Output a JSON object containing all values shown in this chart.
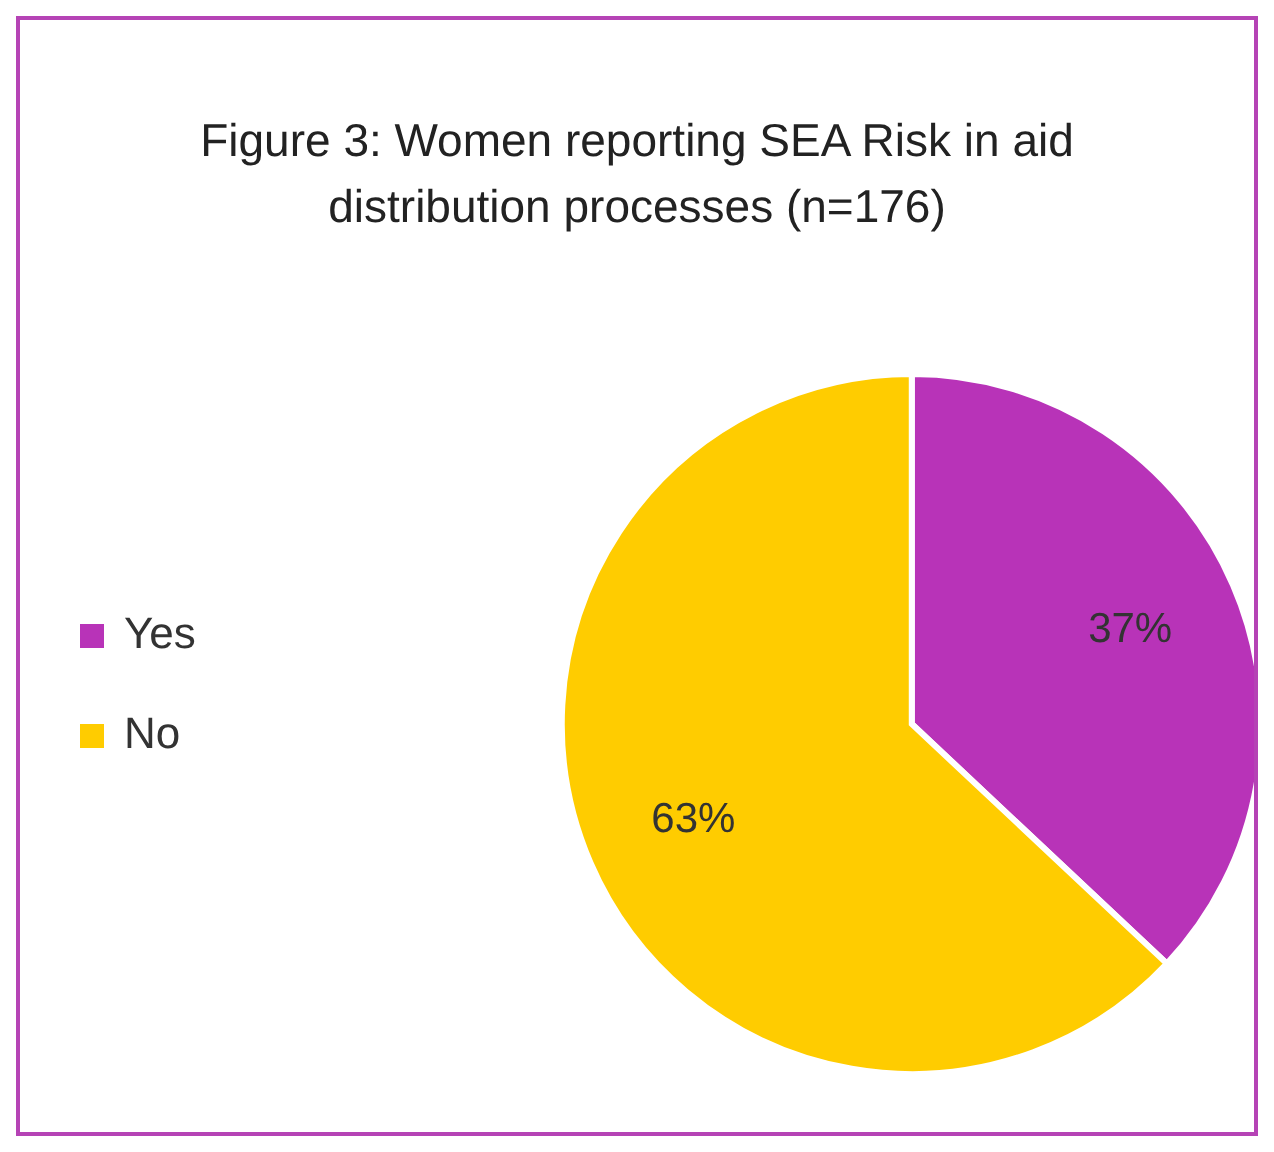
{
  "chart_data": {
    "type": "pie",
    "title": "Figure 3: Women reporting SEA Risk in aid distribution processes (n=176)",
    "categories": [
      "Yes",
      "No"
    ],
    "values": [
      37,
      63
    ],
    "colors": [
      "#b833b8",
      "#ffcc00"
    ],
    "value_labels": [
      "37%",
      "63%"
    ],
    "legend": "left"
  }
}
